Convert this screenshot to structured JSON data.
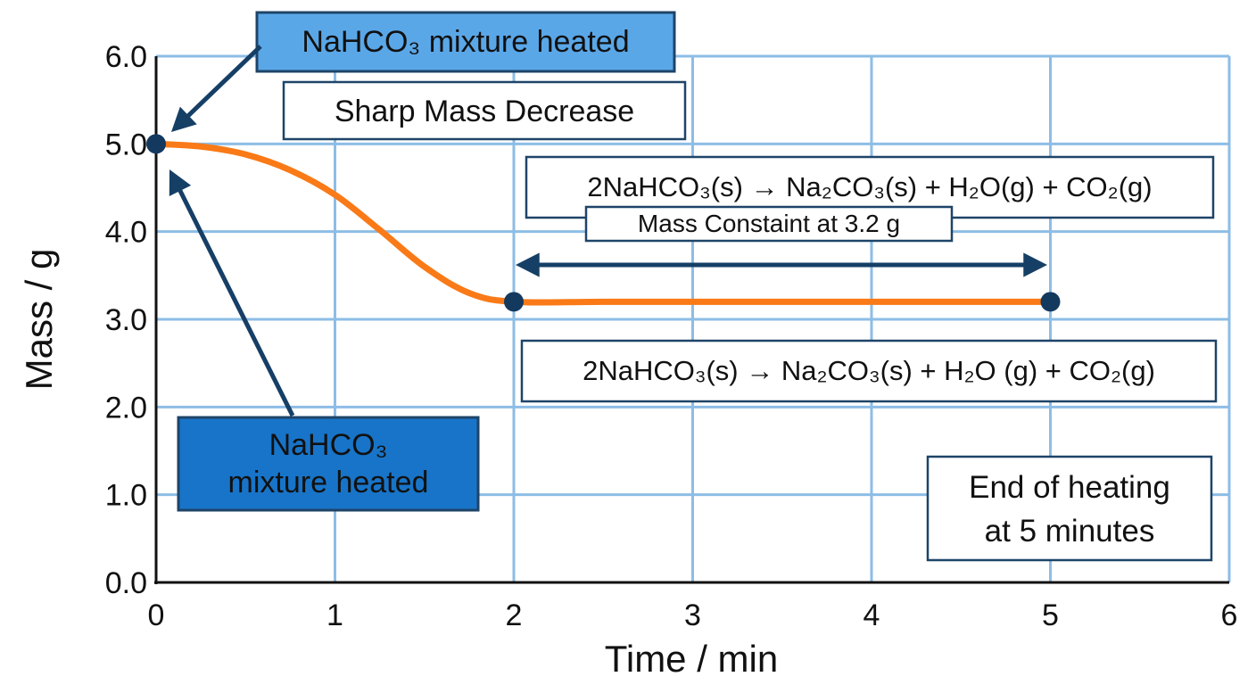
{
  "chart_data": {
    "type": "line",
    "title": "",
    "xlabel": "Time / min",
    "ylabel": "Mass / g",
    "xlim": [
      0,
      6
    ],
    "ylim": [
      0,
      6
    ],
    "x_ticks": [
      "0",
      "1",
      "2",
      "3",
      "4",
      "5",
      "6"
    ],
    "y_ticks": [
      "0.0",
      "1.0",
      "2.0",
      "3.0",
      "4.0",
      "5.0",
      "6.0"
    ],
    "grid": true,
    "series": [
      {
        "x": [
          0,
          0.25,
          0.5,
          0.75,
          1.0,
          1.25,
          1.5,
          1.75,
          2.0,
          2.5,
          3.0,
          3.5,
          4.0,
          4.5,
          5.0
        ],
        "y": [
          5.0,
          4.97,
          4.88,
          4.7,
          4.42,
          4.02,
          3.6,
          3.3,
          3.2,
          3.2,
          3.2,
          3.2,
          3.2,
          3.2,
          3.2
        ],
        "color": "#f97a17"
      }
    ],
    "markers": [
      {
        "x": 0,
        "y": 5.0
      },
      {
        "x": 2,
        "y": 3.2
      },
      {
        "x": 5,
        "y": 3.2
      }
    ],
    "marker_color": "#14395f",
    "grid_color": "#8dbde6",
    "arrow_color": "#163f66",
    "annotations": {
      "top_label": "NaHCO₃ mixture heated",
      "sharp_decrease": "Sharp Mass Decrease",
      "equation_upper": "2NaHCO₃(s) → Na₂CO₃(s) + H₂O(g) + CO₂(g)",
      "mass_constant": "Mass Constaint at 3.2 g",
      "equation_lower": "2NaHCO₃(s) → Na₂CO₃(s) + H₂O (g) + CO₂(g)",
      "left_label_line1": "NaHCO₃",
      "left_label_line2": "mixture heated",
      "end_heating_line1": "End of heating",
      "end_heating_line2": "at 5 minutes"
    },
    "colors": {
      "label_box_light": "#5aa7e8",
      "label_box_dark": "#1874c8",
      "box_border": "#1e4468"
    }
  }
}
